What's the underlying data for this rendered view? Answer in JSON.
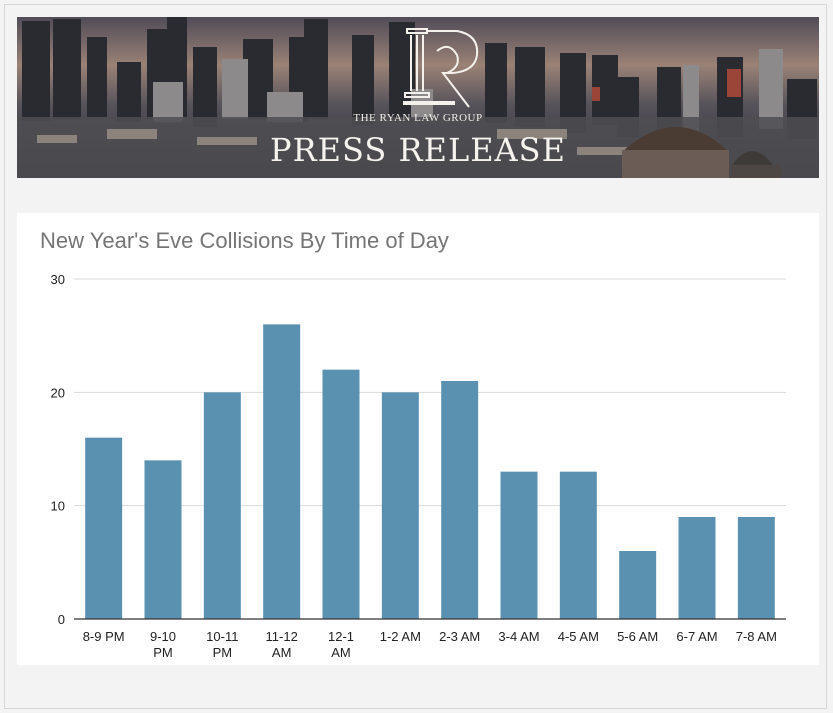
{
  "banner": {
    "brand_name": "THE RYAN LAW GROUP",
    "title": "PRESS RELEASE",
    "logo_letters": "R"
  },
  "colors": {
    "bar": "#5b91b0",
    "grid": "#d9d9d9",
    "axis": "#333333",
    "title": "#757575"
  },
  "chart_data": {
    "type": "bar",
    "title": "New Year's Eve Collisions By Time of Day",
    "xlabel": "",
    "ylabel": "",
    "ylim": [
      0,
      30
    ],
    "yticks": [
      0,
      10,
      20,
      30
    ],
    "grid": true,
    "categories": [
      "8-9 PM",
      "9-10 PM",
      "10-11 PM",
      "11-12 AM",
      "12-1 AM",
      "1-2 AM",
      "2-3 AM",
      "3-4 AM",
      "4-5 AM",
      "5-6 AM",
      "6-7 AM",
      "7-8 AM"
    ],
    "category_lines": [
      [
        "8-9 PM"
      ],
      [
        "9-10",
        "PM"
      ],
      [
        "10-11",
        "PM"
      ],
      [
        "11-12",
        "AM"
      ],
      [
        "12-1",
        "AM"
      ],
      [
        "1-2 AM"
      ],
      [
        "2-3 AM"
      ],
      [
        "3-4 AM"
      ],
      [
        "4-5 AM"
      ],
      [
        "5-6 AM"
      ],
      [
        "6-7 AM"
      ],
      [
        "7-8 AM"
      ]
    ],
    "values": [
      16,
      14,
      20,
      26,
      22,
      20,
      21,
      13,
      13,
      6,
      9,
      9
    ]
  }
}
